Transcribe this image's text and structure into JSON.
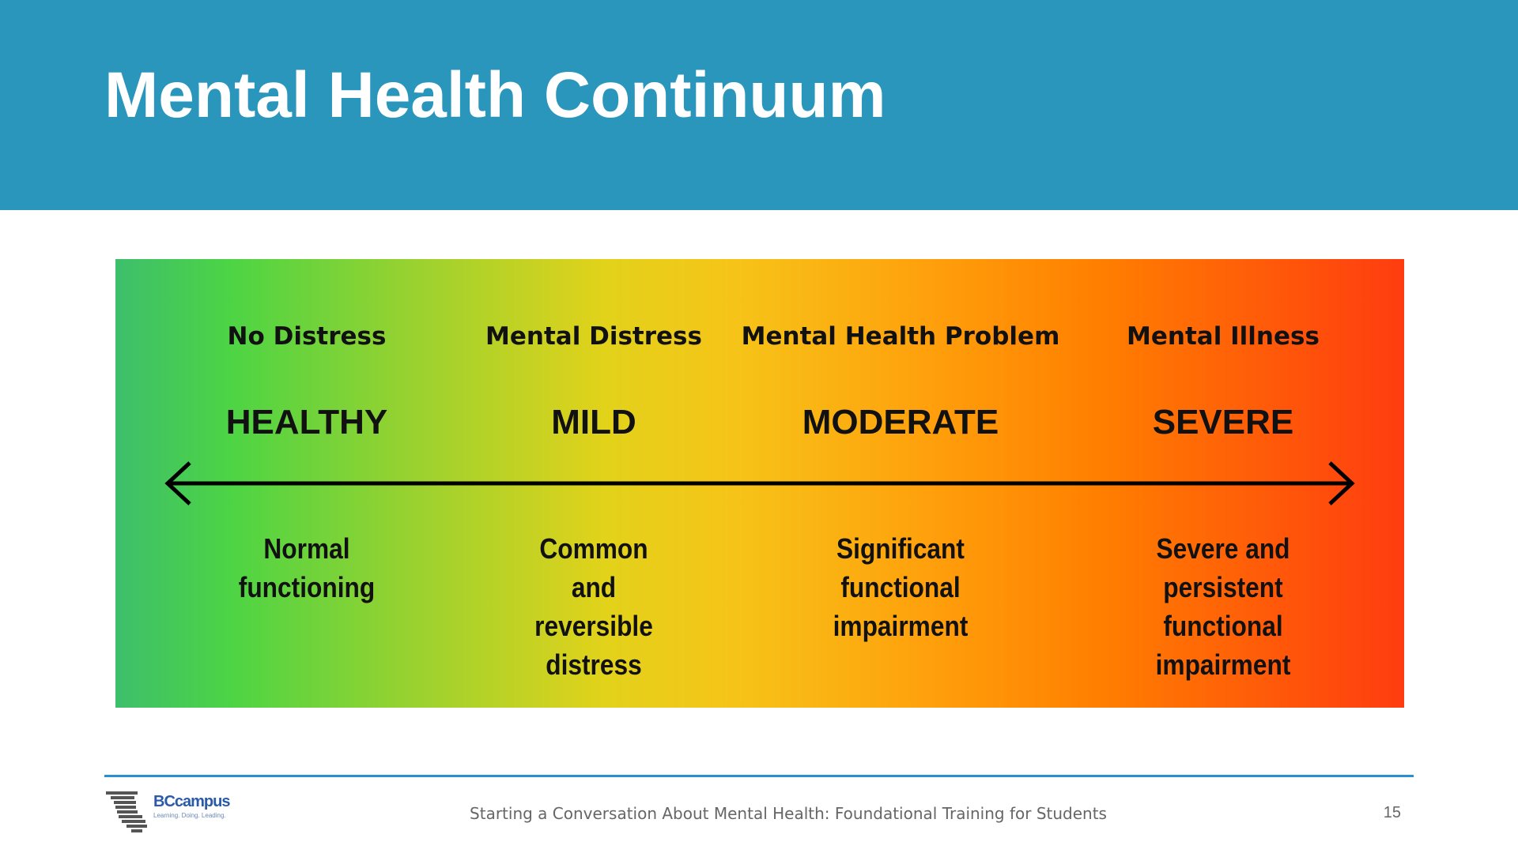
{
  "header": {
    "title": "Mental Health Continuum"
  },
  "continuum": {
    "stages": [
      {
        "label": "No Distress",
        "level": "HEALTHY",
        "description": [
          "Normal",
          "functioning"
        ]
      },
      {
        "label": "Mental Distress",
        "level": "MILD",
        "description": [
          "Common",
          "and",
          "reversible",
          "distress"
        ]
      },
      {
        "label": "Mental Health Problem",
        "level": "MODERATE",
        "description": [
          "Significant",
          "functional",
          "impairment"
        ]
      },
      {
        "label": "Mental Illness",
        "level": "SEVERE",
        "description": [
          "Severe and",
          "persistent",
          "functional",
          "impairment"
        ]
      }
    ]
  },
  "footer": {
    "logo": {
      "name": "BCcampus",
      "tagline": "Learning. Doing. Leading."
    },
    "text": "Starting a Conversation About Mental Health: Foundational Training for Students",
    "page_number": "15"
  }
}
